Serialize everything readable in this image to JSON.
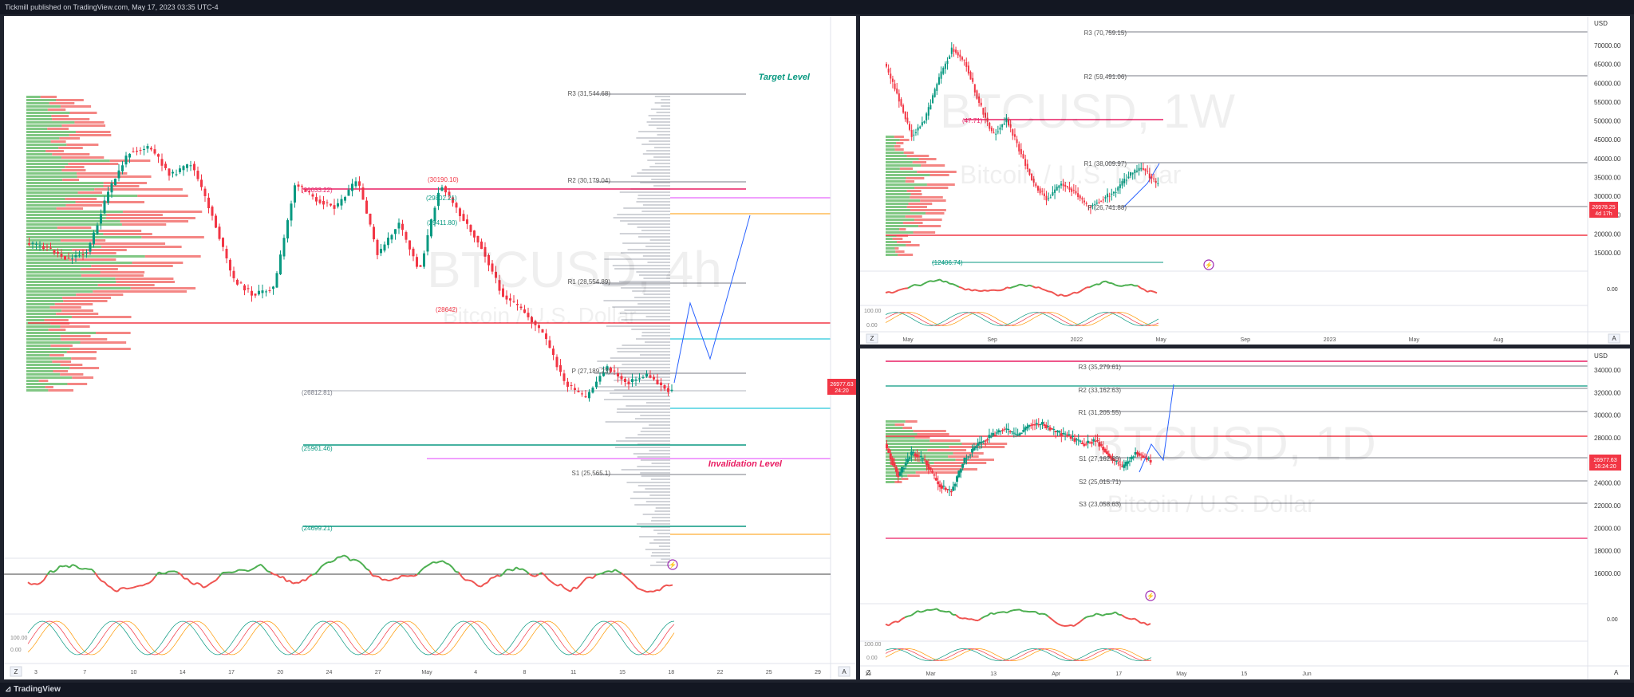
{
  "header": {
    "published": "Tickmill published on TradingView.com, May 17, 2023 03:35 UTC-4"
  },
  "footer": {
    "brand": "TradingView"
  },
  "colors": {
    "up": "#089981",
    "down": "#f23645",
    "green_vol": "#4caf50",
    "red_vol": "#ef5350",
    "pivot": "#787b86",
    "pink": "#e040fb",
    "teal": "#26c6da",
    "orange": "#ff9800",
    "blue": "#2962ff"
  },
  "main": {
    "watermark_symbol": "BTCUSD, 4h",
    "watermark_desc": "Bitcoin / U.S. Dollar",
    "annotations": {
      "target": "Target Level",
      "invalidation": "Invalidation Level"
    },
    "pivots": [
      {
        "label": "R3 (31,544.68)"
      },
      {
        "label": "R2 (30,179.04)"
      },
      {
        "label": "R1 (28,554.89)"
      },
      {
        "label": "P (27,189.23)"
      },
      {
        "label": "S1 (25,565.1)"
      }
    ],
    "levels": [
      {
        "label": "(30033.22)",
        "color": "#e91e63"
      },
      {
        "label": "(30190.10)",
        "color": "#f23645"
      },
      {
        "label": "(29802.21)",
        "color": "#089981"
      },
      {
        "label": "(29411.80)",
        "color": "#089981"
      },
      {
        "label": "(28642)",
        "color": "#f23645"
      },
      {
        "label": "(26812.81)",
        "color": "#787b86"
      },
      {
        "label": "(25961.46)",
        "color": "#089981"
      },
      {
        "label": "(24699.21)",
        "color": "#089981"
      }
    ],
    "price_tag": {
      "price": "26977.63",
      "time": "24:20"
    },
    "x_labels": [
      "3",
      "7",
      "10",
      "14",
      "17",
      "20",
      "24",
      "27",
      "May",
      "4",
      "8",
      "11",
      "15",
      "18",
      "22",
      "25",
      "29"
    ],
    "osc_labels": [
      "100.00",
      "0.00"
    ]
  },
  "weekly": {
    "watermark_symbol": "BTCUSD, 1W",
    "watermark_desc": "Bitcoin / U.S. Dollar",
    "currency": "USD",
    "y_labels": [
      "70000.00",
      "65000.00",
      "60000.00",
      "55000.00",
      "50000.00",
      "45000.00",
      "40000.00",
      "35000.00",
      "30000.00",
      "25000.00",
      "20000.00",
      "15000.00"
    ],
    "pivots": [
      {
        "label": "R3 (70,759.15)"
      },
      {
        "label": "R2 (59,491.06)"
      },
      {
        "label": "R1 (38,009.97)"
      },
      {
        "label": "P (26,741.88)"
      }
    ],
    "levels": [
      {
        "label": "(47.71)"
      },
      {
        "label": "(12406.74)"
      }
    ],
    "price_tag": {
      "price": "26978.25",
      "time": "4d 17h"
    },
    "x_labels": [
      "May",
      "Sep",
      "2022",
      "May",
      "Sep",
      "2023",
      "May",
      "Aug"
    ],
    "osc_labels": [
      "0.00",
      "100.00",
      "0.00"
    ]
  },
  "daily": {
    "watermark_symbol": "BTCUSD, 1D",
    "watermark_desc": "Bitcoin / U.S. Dollar",
    "currency": "USD",
    "y_labels": [
      "34000.00",
      "32000.00",
      "30000.00",
      "28000.00",
      "26000.00",
      "24000.00",
      "22000.00",
      "20000.00",
      "18000.00",
      "16000.00"
    ],
    "pivots": [
      {
        "label": "R3 (35,279.61)"
      },
      {
        "label": "R2 (33,162.63)"
      },
      {
        "label": "R1 (31,205.55)"
      },
      {
        "label": "S1 (27,162.69)"
      },
      {
        "label": "S2 (25,015.71)"
      },
      {
        "label": "S3 (23,058.63)"
      }
    ],
    "price_tag": {
      "price": "26977.63",
      "time": "16:24:20"
    },
    "x_labels": [
      "13",
      "Mar",
      "13",
      "Apr",
      "17",
      "May",
      "15",
      "Jun"
    ],
    "osc_labels": [
      "0.00",
      "100.00",
      "0.00"
    ]
  }
}
